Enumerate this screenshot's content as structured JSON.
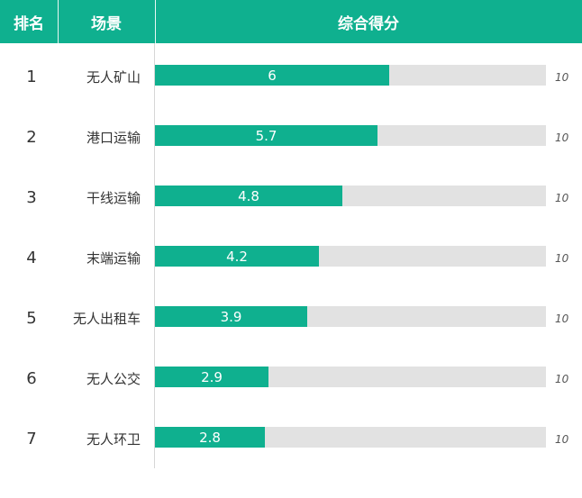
{
  "header": {
    "rank": "排名",
    "scene": "场景",
    "score": "综合得分"
  },
  "colors": {
    "accent": "#0fb08f",
    "track": "#e2e2e2"
  },
  "chart_data": {
    "type": "bar",
    "orientation": "horizontal",
    "title": "",
    "xlim": [
      0,
      10
    ],
    "max_label": "10",
    "ranks": [
      "1",
      "2",
      "3",
      "4",
      "5",
      "6",
      "7"
    ],
    "categories": [
      "无人矿山",
      "港口运输",
      "干线运输",
      "末端运输",
      "无人出租车",
      "无人公交",
      "无人环卫"
    ],
    "values": [
      6,
      5.7,
      4.8,
      4.2,
      3.9,
      2.9,
      2.8
    ],
    "value_labels": [
      "6",
      "5.7",
      "4.8",
      "4.2",
      "3.9",
      "2.9",
      "2.8"
    ]
  }
}
